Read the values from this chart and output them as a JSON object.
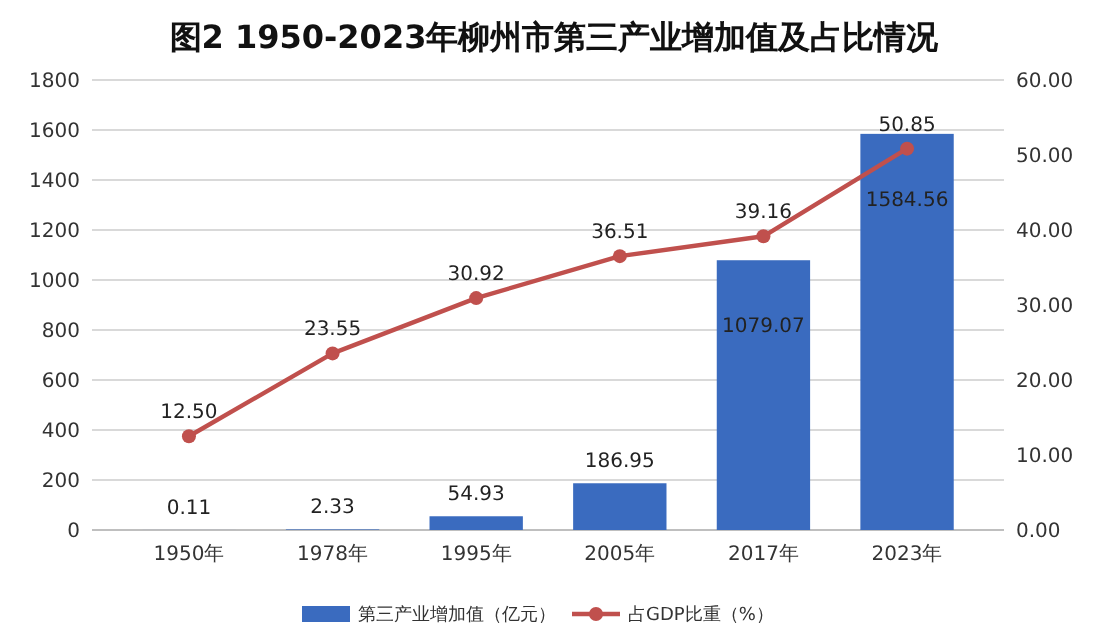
{
  "chart_data": {
    "type": "bar",
    "title": "图2 1950-2023年柳州市第三产业增加值及占比情况",
    "categories": [
      "1950年",
      "1978年",
      "1995年",
      "2005年",
      "2017年",
      "2023年"
    ],
    "series": [
      {
        "name": "第三产业增加值（亿元）",
        "color": "#3a6bbf",
        "values": [
          0.11,
          2.33,
          54.93,
          186.95,
          1079.07,
          1584.56
        ],
        "value_labels": [
          "0.11",
          "2.33",
          "54.93",
          "186.95",
          "1079.07",
          "1584.56"
        ]
      },
      {
        "name": "占GDP比重（%）",
        "type": "line",
        "axis": "y2",
        "color": "#c0504d",
        "values": [
          12.5,
          23.55,
          30.92,
          36.51,
          39.16,
          50.85
        ],
        "value_labels": [
          "12.50",
          "23.55",
          "30.92",
          "36.51",
          "39.16",
          "50.85"
        ]
      }
    ],
    "ylim": [
      0,
      1800
    ],
    "yticks": [
      0,
      200,
      400,
      600,
      800,
      1000,
      1200,
      1400,
      1600,
      1800
    ],
    "y2lim": [
      0,
      60
    ],
    "y2ticks": [
      {
        "value": 0,
        "label": "0.00"
      },
      {
        "value": 10,
        "label": "10.00"
      },
      {
        "value": 20,
        "label": "20.00"
      },
      {
        "value": 30,
        "label": "30.00"
      },
      {
        "value": 40,
        "label": "40.00"
      },
      {
        "value": 50,
        "label": "50.00"
      },
      {
        "value": 60,
        "label": "60.00"
      }
    ],
    "grid": "y",
    "legend": "bottom",
    "marker": "circle"
  }
}
